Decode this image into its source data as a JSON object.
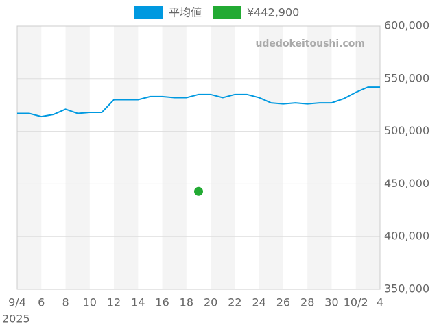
{
  "chart_data": {
    "type": "line",
    "watermark": "udedokeitoushi.com",
    "categories": [
      "9/4",
      null,
      "6",
      null,
      "8",
      null,
      "10",
      null,
      "12",
      null,
      "14",
      null,
      "16",
      null,
      "18",
      null,
      "20",
      null,
      "22",
      null,
      "24",
      null,
      "26",
      null,
      "28",
      null,
      "30",
      null,
      "10/2",
      null,
      "4"
    ],
    "year_label": "2025",
    "series": [
      {
        "name": "平均値",
        "color": "#0099e0",
        "marker": "line",
        "values": [
          517000,
          517000,
          514000,
          516000,
          521000,
          517000,
          518000,
          518000,
          530000,
          530000,
          530000,
          533000,
          533000,
          532000,
          532000,
          535000,
          535000,
          532000,
          535000,
          535000,
          532000,
          527000,
          526000,
          527000,
          526000,
          527000,
          527000,
          531000,
          537000,
          542000,
          542000
        ]
      },
      {
        "name": "¥442,900",
        "color": "#22aa33",
        "marker": "point",
        "values": [
          null,
          null,
          null,
          null,
          null,
          null,
          null,
          null,
          null,
          null,
          null,
          null,
          null,
          null,
          null,
          442900,
          null,
          null,
          null,
          null,
          null,
          null,
          null,
          null,
          null,
          null,
          null,
          null,
          null,
          null,
          null
        ]
      }
    ],
    "ylim": [
      350000,
      600000
    ],
    "yticks": [
      {
        "value": 350000,
        "label": "350,000"
      },
      {
        "value": 400000,
        "label": "400,000"
      },
      {
        "value": 450000,
        "label": "450,000"
      },
      {
        "value": 500000,
        "label": "500,000"
      },
      {
        "value": 550000,
        "label": "550,000"
      },
      {
        "value": 600000,
        "label": "600,000"
      }
    ],
    "grid": true
  }
}
